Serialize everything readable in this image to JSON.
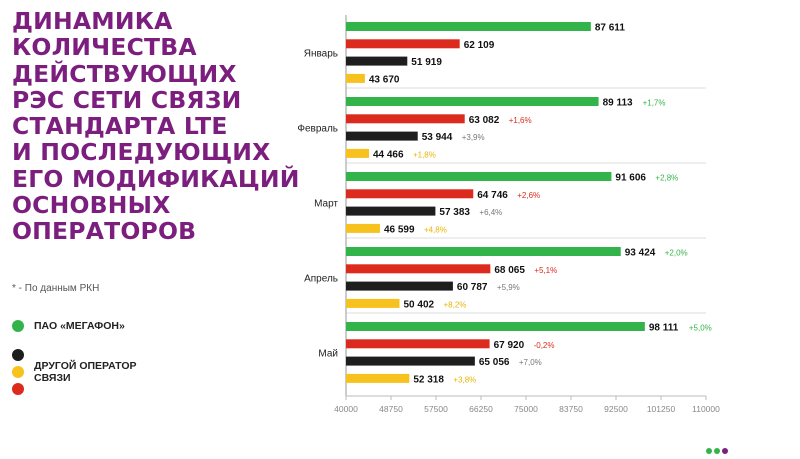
{
  "title_lines": [
    "ДИНАМИКА",
    "КОЛИЧЕСТВА",
    "ДЕЙСТВУЮЩИХ",
    "РЭС СЕТИ СВЯЗИ",
    "СТАНДАРТА LTE",
    "И ПОСЛЕДУЮЩИХ",
    "ЕГО МОДИФИКАЦИЙ",
    "ОСНОВНЫХ",
    "ОПЕРАТОРОВ"
  ],
  "source_note": "* - По данным РКН",
  "legend": {
    "megafon": "ПАО «МЕГАФОН»",
    "other": "ДРУГОЙ ОПЕРАТОР\nСВЯЗИ"
  },
  "colors": {
    "title": "#7b1e7e",
    "green": "#33b44a",
    "red": "#dd2a1e",
    "black": "#1e1e1e",
    "yellow": "#f7c11e",
    "pos_change_green": "#33b44a",
    "red_change": "#dd2a1e",
    "gray_change": "#777777",
    "yellow_change": "#e9b400"
  },
  "chart_data": {
    "type": "bar",
    "orientation": "horizontal",
    "categories": [
      "Январь",
      "Февраль",
      "Март",
      "Апрель",
      "Май"
    ],
    "xlim": [
      40000,
      110000
    ],
    "xticks": [
      "40000",
      "48750",
      "57500",
      "66250",
      "75000",
      "83750",
      "92500",
      "101250",
      "110000"
    ],
    "series": [
      {
        "color": "#33b44a",
        "values": [
          87611,
          89113,
          91606,
          93424,
          98111
        ],
        "labels": [
          "87 611",
          "89 113",
          "91 606",
          "93 424",
          "98 111"
        ],
        "changes": [
          "",
          "+1,7%",
          "+2,8%",
          "+2,0%",
          "+5,0%"
        ],
        "change_color": "#33b44a"
      },
      {
        "color": "#dd2a1e",
        "values": [
          62109,
          63082,
          64746,
          68065,
          67920
        ],
        "labels": [
          "62 109",
          "63 082",
          "64 746",
          "68 065",
          "67 920"
        ],
        "changes": [
          "",
          "+1,6%",
          "+2,6%",
          "+5,1%",
          "-0,2%"
        ],
        "change_color": "#dd2a1e"
      },
      {
        "color": "#1e1e1e",
        "values": [
          51919,
          53944,
          57383,
          60787,
          65056
        ],
        "labels": [
          "51 919",
          "53 944",
          "57 383",
          "60 787",
          "65 056"
        ],
        "changes": [
          "",
          "+3,9%",
          "+6,4%",
          "+5,9%",
          "+7,0%"
        ],
        "change_color": "#777777"
      },
      {
        "color": "#f7c11e",
        "values": [
          43670,
          44466,
          46599,
          50402,
          52318
        ],
        "labels": [
          "43 670",
          "44 466",
          "46 599",
          "50 402",
          "52 318"
        ],
        "changes": [
          "",
          "+1,8%",
          "+4,8%",
          "+8,2%",
          "+3,8%"
        ],
        "change_color": "#e9b400"
      }
    ],
    "grid": true
  }
}
